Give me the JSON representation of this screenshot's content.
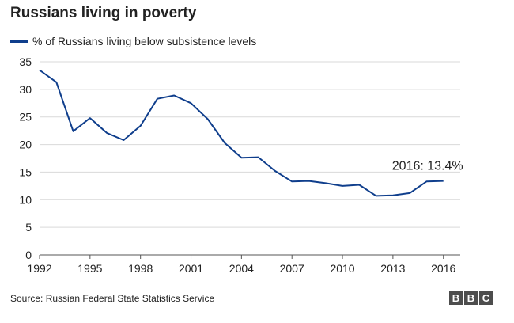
{
  "chart_data": {
    "type": "line",
    "title": "Russians living in poverty",
    "xlabel": "",
    "ylabel": "",
    "x": [
      1992,
      1993,
      1994,
      1995,
      1996,
      1997,
      1998,
      1999,
      2000,
      2001,
      2002,
      2003,
      2004,
      2005,
      2006,
      2007,
      2008,
      2009,
      2010,
      2011,
      2012,
      2013,
      2014,
      2015,
      2016
    ],
    "series": [
      {
        "name": "% of Russians living below subsistence levels",
        "values": [
          33.5,
          31.3,
          22.4,
          24.8,
          22.1,
          20.8,
          23.4,
          28.3,
          28.9,
          27.5,
          24.6,
          20.3,
          17.6,
          17.7,
          15.2,
          13.3,
          13.4,
          13.0,
          12.5,
          12.7,
          10.7,
          10.8,
          11.2,
          13.3,
          13.4
        ],
        "color": "#0f3e8c"
      }
    ],
    "xlim": [
      1992,
      2017
    ],
    "ylim": [
      0,
      35
    ],
    "xticks": [
      1992,
      1995,
      1998,
      2001,
      2004,
      2007,
      2010,
      2013,
      2016
    ],
    "yticks": [
      0,
      5,
      10,
      15,
      20,
      25,
      30,
      35
    ],
    "grid": true,
    "legend": "top-left",
    "annotation": {
      "text": "2016: 13.4%",
      "x": 2016,
      "y": 13.4
    }
  },
  "footer": {
    "source": "Source: Russian Federal State Statistics Service",
    "logo": [
      "B",
      "B",
      "C"
    ]
  }
}
